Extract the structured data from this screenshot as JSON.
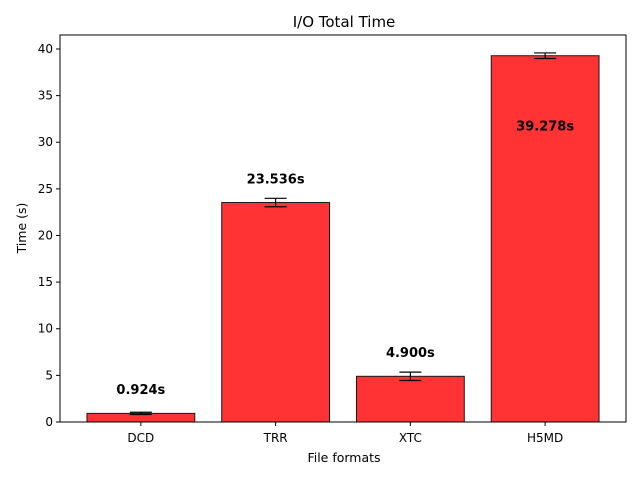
{
  "chart_data": {
    "type": "bar",
    "title": "I/O Total Time",
    "xlabel": "File formats",
    "ylabel": "Time (s)",
    "categories": [
      "DCD",
      "TRR",
      "XTC",
      "H5MD"
    ],
    "values": [
      0.924,
      23.536,
      4.9,
      39.278
    ],
    "errors": [
      0.12,
      0.45,
      0.45,
      0.3
    ],
    "data_labels": [
      "0.924s",
      "23.536s",
      "4.900s",
      "39.278s"
    ],
    "yticks": [
      0,
      5,
      10,
      15,
      20,
      25,
      30,
      35,
      40
    ],
    "ylim": [
      0,
      41.5
    ],
    "grid": false,
    "bar_color": "#ff3333",
    "edge_color": "#1a1a1a"
  }
}
